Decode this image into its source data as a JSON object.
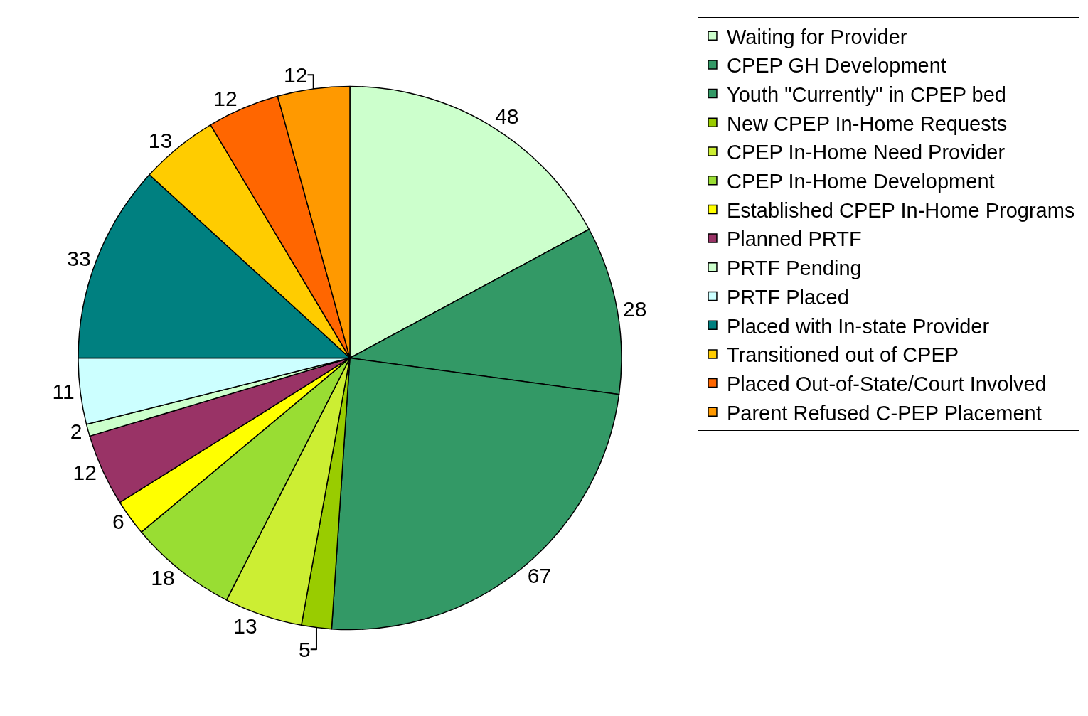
{
  "chart_data": {
    "type": "pie",
    "categories": [
      "Waiting for Provider",
      "CPEP GH Development",
      "Youth \"Currently\" in CPEP bed",
      "New CPEP In-Home Requests",
      "CPEP In-Home Need Provider",
      "CPEP In-Home Development",
      "Established CPEP In-Home Programs",
      "Planned PRTF",
      "PRTF Pending",
      "PRTF Placed",
      "Placed with In-state Provider",
      "Transitioned out of CPEP",
      "Placed Out-of-State/Court Involved",
      "Parent Refused C-PEP Placement"
    ],
    "values": [
      48,
      28,
      67,
      5,
      13,
      18,
      6,
      12,
      2,
      11,
      33,
      13,
      12,
      12
    ],
    "colors": [
      "#ccffcc",
      "#339966",
      "#339966",
      "#99cc00",
      "#ccee33",
      "#99dd33",
      "#ffff00",
      "#993366",
      "#ccffcc",
      "#ccffff",
      "#008080",
      "#ffcc00",
      "#ff6600",
      "#ff9900"
    ],
    "data_labels": true,
    "legend": "right"
  }
}
